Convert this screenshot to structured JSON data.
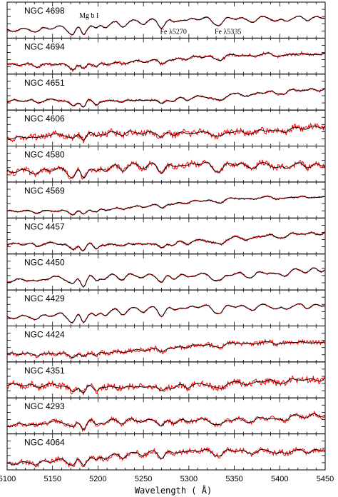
{
  "chart_data": {
    "type": "line",
    "xlabel": "Wavelength ( Å)",
    "xlim": [
      5100,
      5450
    ],
    "x_ticks": [
      "5100",
      "5150",
      "5200",
      "5250",
      "5300",
      "5350",
      "5400",
      "5450"
    ],
    "x_tick_values": [
      5100,
      5150,
      5200,
      5250,
      5300,
      5350,
      5400,
      5450
    ],
    "colors": {
      "observed": "#ff0000",
      "model": "#000000"
    },
    "annotations": [
      {
        "text": "Mg b I",
        "x": 5190,
        "panel": 0
      },
      {
        "text": "Fe λ5270",
        "x": 5283,
        "panel": 0
      },
      {
        "text": "Fe λ5335",
        "x": 5343,
        "panel": 0
      }
    ],
    "panels": [
      {
        "label": "NGC 4698",
        "seed": 11,
        "noise": 0.1,
        "depth": 1.0,
        "slope": 0.6
      },
      {
        "label": "NGC 4694",
        "seed": 22,
        "noise": 0.25,
        "depth": 0.75,
        "slope": 0.55
      },
      {
        "label": "NGC 4651",
        "seed": 33,
        "noise": 0.15,
        "depth": 0.8,
        "slope": 0.55
      },
      {
        "label": "NGC 4606",
        "seed": 44,
        "noise": 0.35,
        "depth": 0.55,
        "slope": 0.45
      },
      {
        "label": "NGC 4580",
        "seed": 55,
        "noise": 0.4,
        "depth": 1.2,
        "slope": 0.35
      },
      {
        "label": "NGC 4569",
        "seed": 66,
        "noise": 0.1,
        "depth": 0.45,
        "slope": 0.55
      },
      {
        "label": "NGC 4457",
        "seed": 77,
        "noise": 0.15,
        "depth": 0.8,
        "slope": 0.5
      },
      {
        "label": "NGC 4450",
        "seed": 88,
        "noise": 0.1,
        "depth": 1.0,
        "slope": 0.55
      },
      {
        "label": "NGC 4429",
        "seed": 99,
        "noise": 0.1,
        "depth": 1.1,
        "slope": 0.6
      },
      {
        "label": "NGC 4424",
        "seed": 110,
        "noise": 0.3,
        "depth": 0.5,
        "slope": 0.5
      },
      {
        "label": "NGC 4351",
        "seed": 121,
        "noise": 0.45,
        "depth": 0.9,
        "slope": 0.3
      },
      {
        "label": "NGC 4293",
        "seed": 132,
        "noise": 0.25,
        "depth": 0.75,
        "slope": 0.45
      },
      {
        "label": "NGC 4064",
        "seed": 143,
        "noise": 0.25,
        "depth": 0.6,
        "slope": 0.45
      }
    ]
  }
}
